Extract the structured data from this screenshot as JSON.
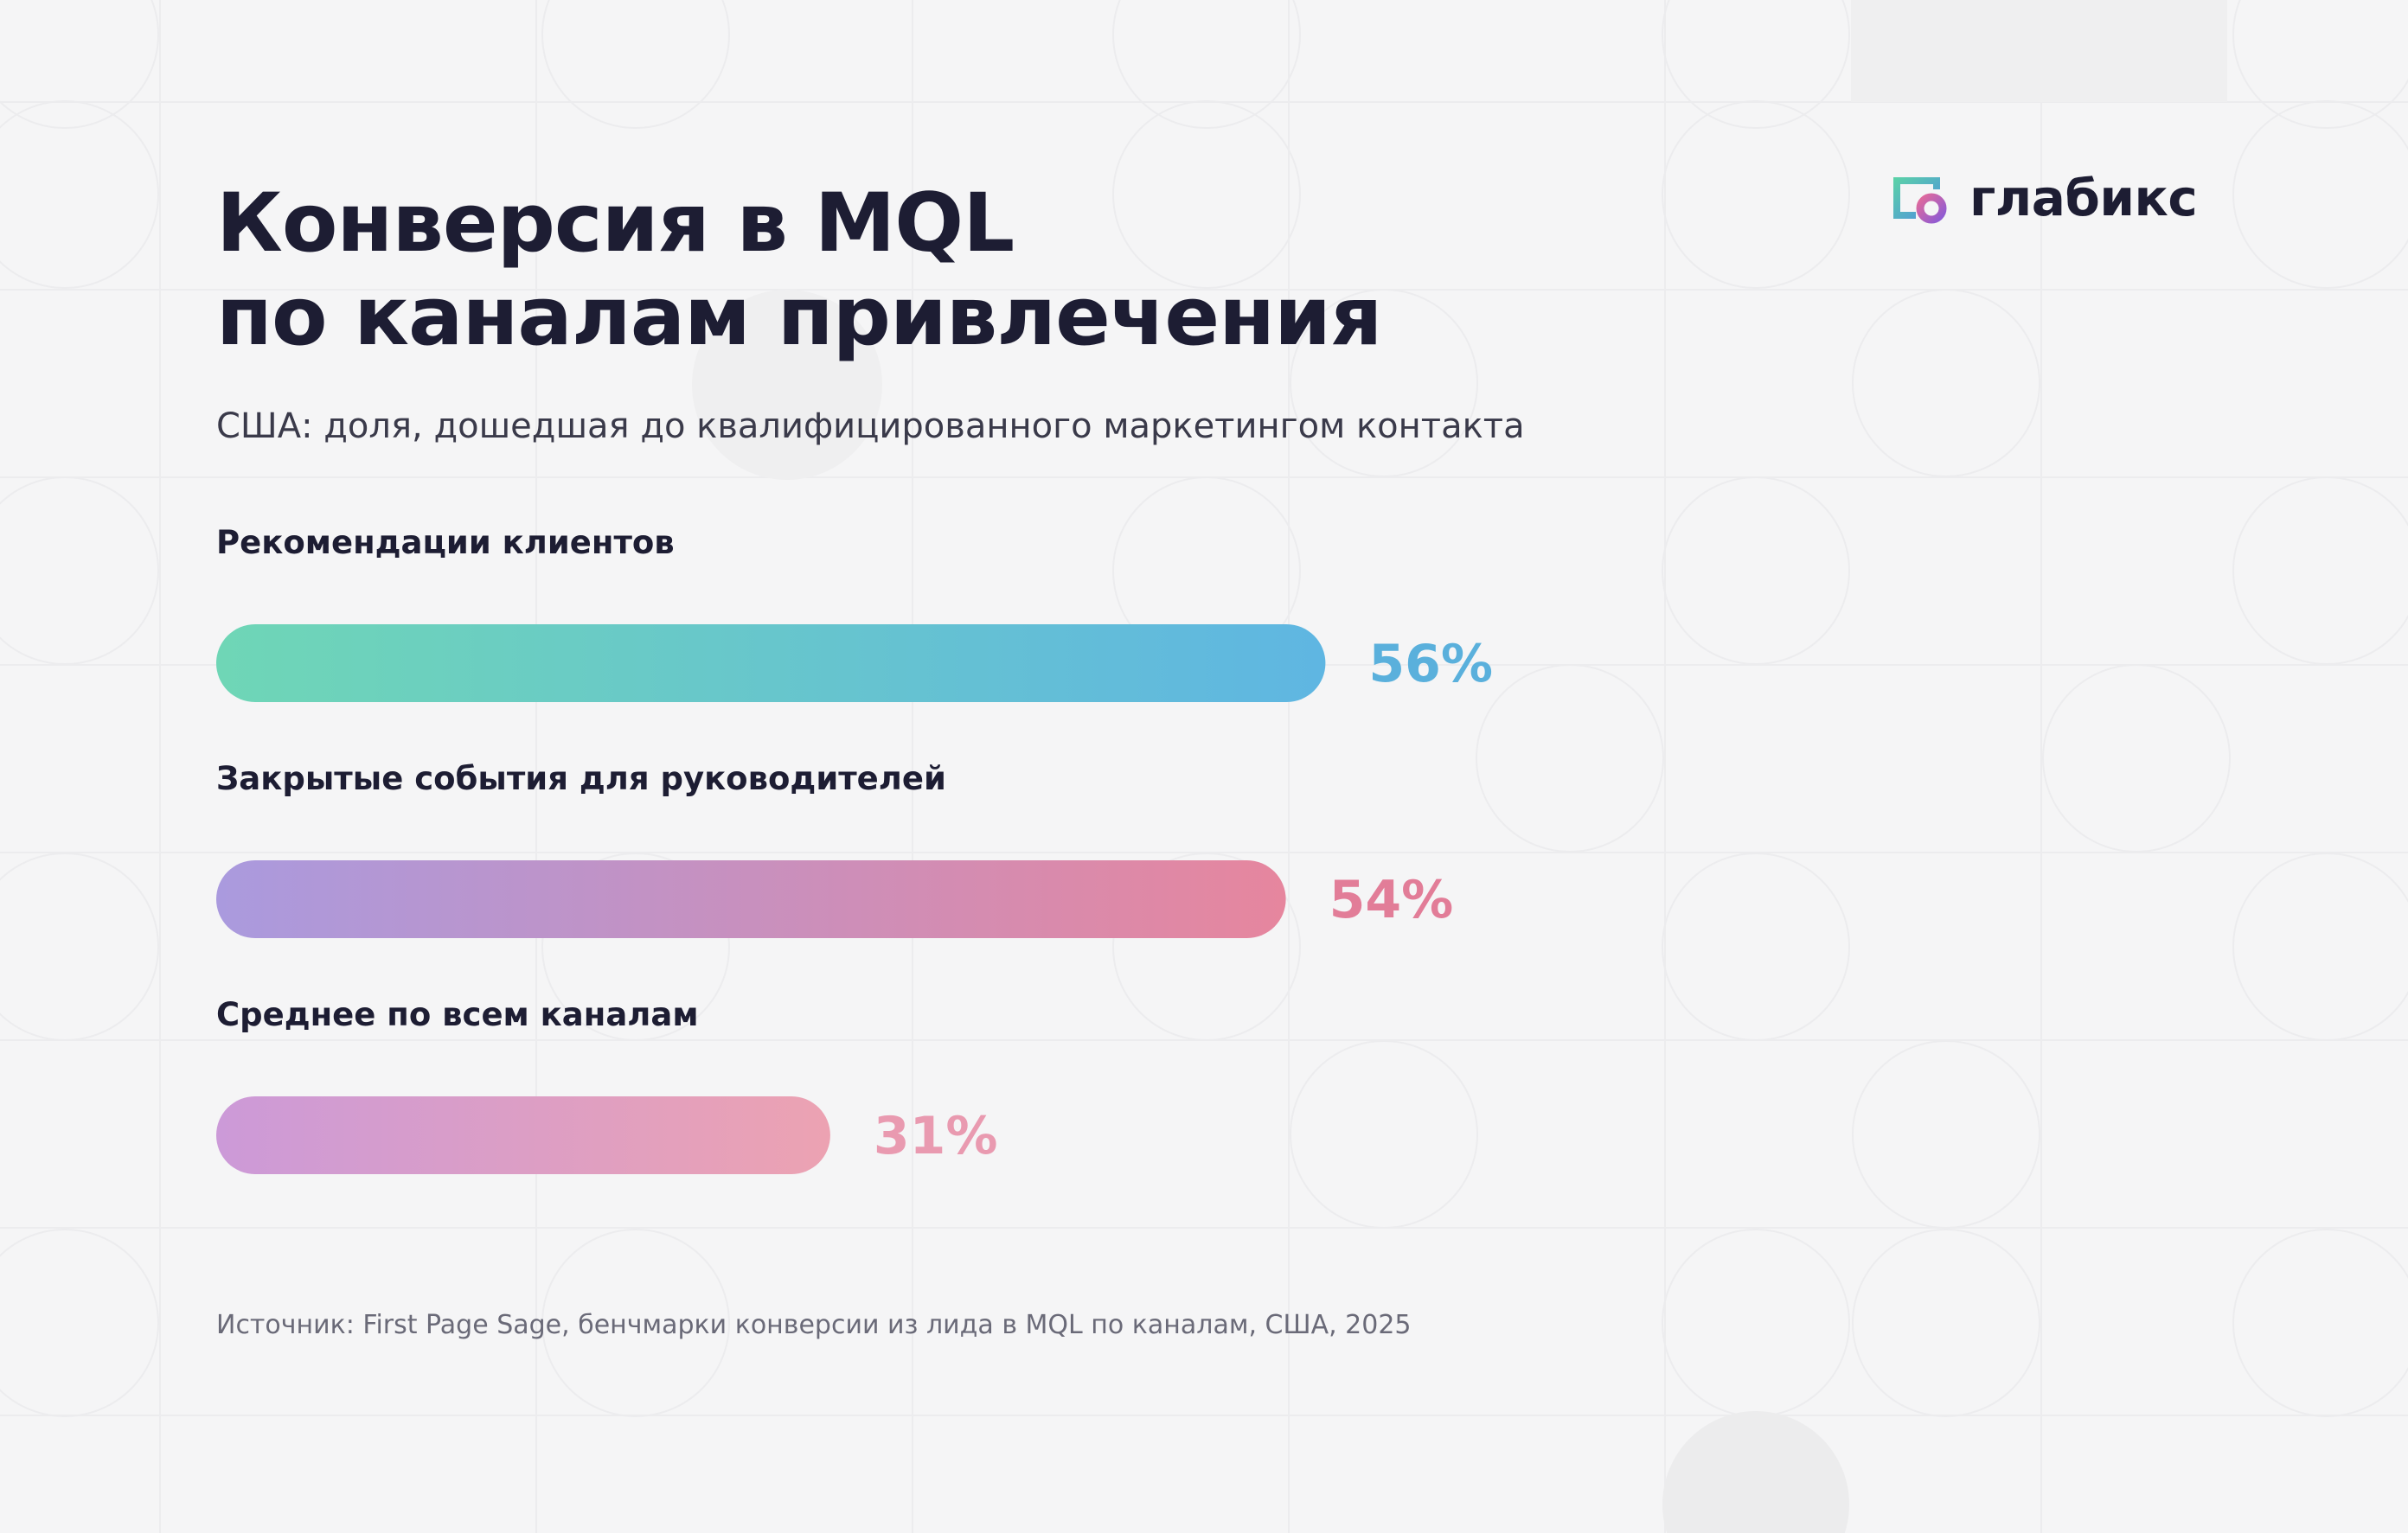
{
  "logo": {
    "text": "глабикс"
  },
  "footer": {
    "source": "Источник: First Page Sage, бенчмарки конверсии из лида в MQL по каналам, США, 2025"
  },
  "chart_data": {
    "type": "bar",
    "orientation": "horizontal",
    "title_lines": [
      "Конверсия в MQL",
      "по каналам привлечения"
    ],
    "subtitle": "США: доля, дошедшая до квалифицированного маркетингом контакта",
    "categories": [
      "Рекомендации клиентов",
      "Закрытые события для руководителей",
      "Среднее по всем каналам"
    ],
    "values": [
      56,
      54,
      31
    ],
    "value_labels": [
      "56%",
      "54%",
      "31%"
    ],
    "unit": "%",
    "xlim": [
      0,
      100
    ],
    "grid": false,
    "colors": [
      [
        "#6fd6b6",
        "#5fb6e2"
      ],
      [
        "#aa9ade",
        "#e6869e"
      ],
      [
        "#cc9ad8",
        "#eca2b2"
      ]
    ],
    "label_colors": [
      "#5ab0dc",
      "#e27d98",
      "#e99ab0"
    ]
  }
}
